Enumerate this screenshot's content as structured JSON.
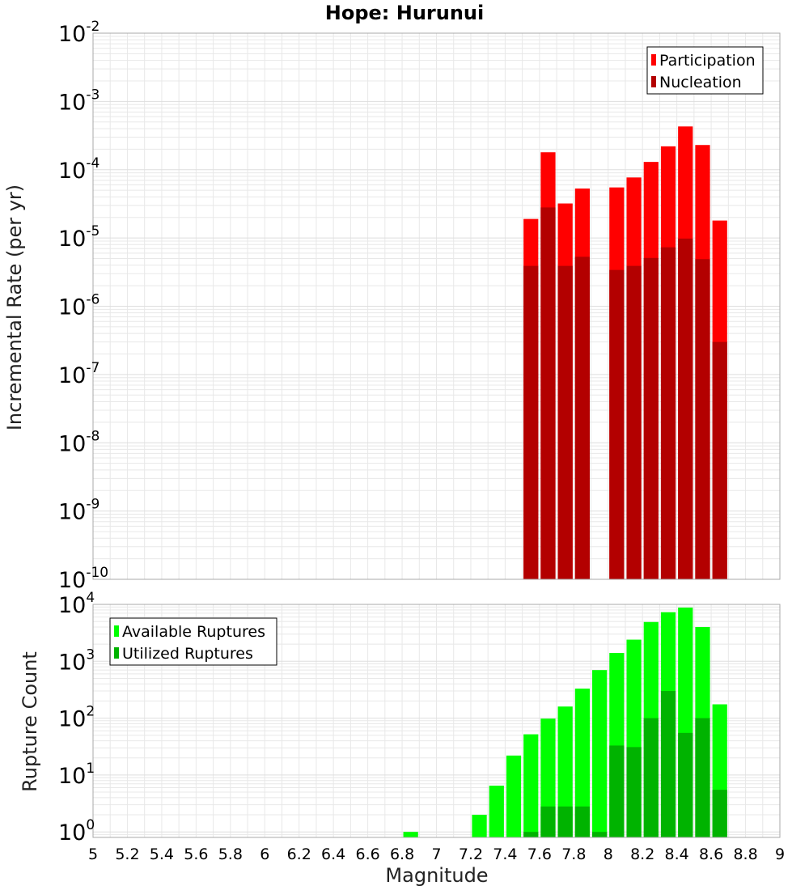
{
  "chart_data": [
    {
      "type": "bar",
      "title": "Hope: Hurunui",
      "ylabel": "Incremental Rate (per yr)",
      "xlabel": "",
      "xlim": [
        5,
        9
      ],
      "ylim": [
        1e-10,
        0.01
      ],
      "yscale": "log",
      "ytick_exponents": [
        "-2",
        "-3",
        "-4",
        "-5",
        "-6",
        "-7",
        "-8",
        "-9",
        "-10"
      ],
      "grid": true,
      "legend_position": "top-right",
      "bar_width": 0.1,
      "x": [
        7.55,
        7.65,
        7.75,
        7.85,
        8.05,
        8.15,
        8.25,
        8.35,
        8.45,
        8.55,
        8.65
      ],
      "series": [
        {
          "name": "Participation",
          "color": "#ff0000",
          "values": [
            1.9e-05,
            0.00018,
            3.2e-05,
            5.3e-05,
            5.5e-05,
            7.7e-05,
            0.00013,
            0.00022,
            0.00043,
            0.00023,
            1.8e-05
          ]
        },
        {
          "name": "Nucleation",
          "color": "#b30000",
          "values": [
            3.9e-06,
            2.8e-05,
            3.9e-06,
            5.3e-06,
            3.4e-06,
            3.9e-06,
            5.1e-06,
            7.3e-06,
            9.8e-06,
            4.9e-06,
            3e-07
          ]
        }
      ]
    },
    {
      "type": "bar",
      "title": "",
      "ylabel": "Rupture Count",
      "xlabel": "Magnitude",
      "xlim": [
        5,
        9
      ],
      "ylim": [
        0.8,
        10000
      ],
      "yscale": "log",
      "ytick_exponents": [
        "0",
        "1",
        "2",
        "3",
        "4"
      ],
      "xticks": [
        "5",
        "5.2",
        "5.4",
        "5.6",
        "5.8",
        "6",
        "6.2",
        "6.4",
        "6.6",
        "6.8",
        "7",
        "7.2",
        "7.4",
        "7.6",
        "7.8",
        "8",
        "8.2",
        "8.4",
        "8.6",
        "8.8",
        "9"
      ],
      "grid": true,
      "legend_position": "top-left",
      "bar_width": 0.1,
      "x": [
        6.85,
        7.25,
        7.35,
        7.45,
        7.55,
        7.65,
        7.75,
        7.85,
        7.95,
        8.05,
        8.15,
        8.25,
        8.35,
        8.45,
        8.55,
        8.65
      ],
      "series": [
        {
          "name": "Available Ruptures",
          "color": "#00ff00",
          "values": [
            1,
            2,
            6.5,
            22,
            52,
            98,
            160,
            330,
            700,
            1400,
            2400,
            4900,
            7300,
            8800,
            4000,
            175
          ]
        },
        {
          "name": "Utilized Ruptures",
          "color": "#00b300",
          "values": [
            0,
            0,
            0,
            0,
            1,
            2.8,
            2.8,
            2.8,
            1,
            33,
            31,
            100,
            300,
            55,
            100,
            5.5
          ]
        }
      ]
    }
  ]
}
